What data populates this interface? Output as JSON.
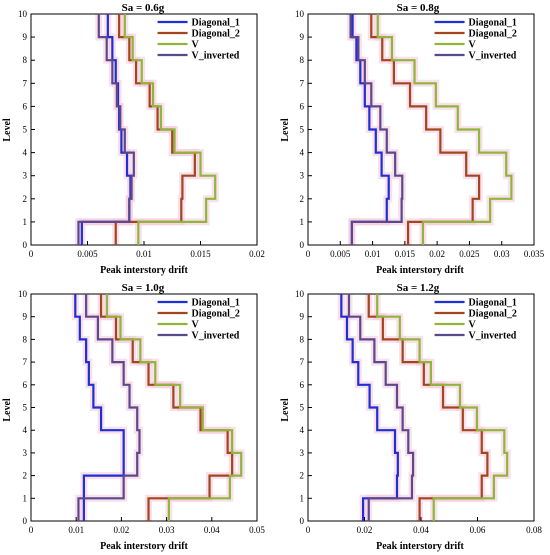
{
  "colors": {
    "Diagonal_1": "#1f2fd6",
    "Diagonal_2": "#a1461d",
    "V": "#8fb63a",
    "V_inverted": "#5a4a8c",
    "band": "#f5c6dc"
  },
  "chart_data": [
    {
      "type": "line",
      "title": "Sa = 0.6g",
      "xlabel": "Peak interstory drift",
      "ylabel": "Level",
      "xlim": [
        0,
        0.02
      ],
      "ylim": [
        0,
        10
      ],
      "xticks": [
        0,
        0.005,
        0.01,
        0.015,
        0.02
      ],
      "xtick_labels": [
        "0",
        "0.005",
        "0.01",
        "0.015",
        "0.02"
      ],
      "yticks": [
        0,
        1,
        2,
        3,
        4,
        5,
        6,
        7,
        8,
        9,
        10
      ],
      "ytick_labels": [
        "0",
        "1",
        "2",
        "3",
        "4",
        "5",
        "6",
        "7",
        "8",
        "9",
        "10"
      ],
      "legend": "top-right",
      "series": [
        {
          "name": "Diagonal_1",
          "values": [
            0.0045,
            0.0087,
            0.0088,
            0.0085,
            0.008,
            0.0078,
            0.0077,
            0.0075,
            0.0072,
            0.0068
          ]
        },
        {
          "name": "Diagonal_2",
          "values": [
            0.0075,
            0.0133,
            0.0134,
            0.0145,
            0.0125,
            0.0112,
            0.0105,
            0.0093,
            0.0087,
            0.0078
          ]
        },
        {
          "name": "V",
          "values": [
            0.0095,
            0.0155,
            0.0163,
            0.015,
            0.0127,
            0.0115,
            0.0108,
            0.0098,
            0.009,
            0.0083
          ]
        },
        {
          "name": "V_inverted",
          "values": [
            0.0042,
            0.0087,
            0.0089,
            0.0091,
            0.0083,
            0.0079,
            0.0076,
            0.0072,
            0.0067,
            0.006
          ]
        }
      ]
    },
    {
      "type": "line",
      "title": "Sa = 0.8g",
      "xlabel": "Peak interstory drift",
      "ylabel": "Level",
      "xlim": [
        0,
        0.035
      ],
      "ylim": [
        0,
        10
      ],
      "xticks": [
        0,
        0.005,
        0.01,
        0.015,
        0.02,
        0.025,
        0.03,
        0.035
      ],
      "xtick_labels": [
        "0",
        "0.005",
        "0.01",
        "0.015",
        "0.02",
        "0.025",
        "0.03",
        "0.035"
      ],
      "yticks": [
        0,
        1,
        2,
        3,
        4,
        5,
        6,
        7,
        8,
        9,
        10
      ],
      "ytick_labels": [
        "0",
        "1",
        "2",
        "3",
        "4",
        "5",
        "6",
        "7",
        "8",
        "9",
        "10"
      ],
      "legend": "top-right",
      "series": [
        {
          "name": "Diagonal_1",
          "values": [
            0.0068,
            0.0122,
            0.0125,
            0.0114,
            0.0105,
            0.0095,
            0.0088,
            0.0081,
            0.0075,
            0.0069
          ]
        },
        {
          "name": "Diagonal_2",
          "values": [
            0.0155,
            0.0255,
            0.0265,
            0.0245,
            0.0205,
            0.0183,
            0.0158,
            0.0133,
            0.0115,
            0.0098
          ]
        },
        {
          "name": "V",
          "values": [
            0.0178,
            0.0282,
            0.0315,
            0.0307,
            0.0265,
            0.0232,
            0.0198,
            0.0165,
            0.013,
            0.0108
          ]
        },
        {
          "name": "V_inverted",
          "values": [
            0.0068,
            0.0145,
            0.0146,
            0.0135,
            0.0122,
            0.0112,
            0.0098,
            0.0088,
            0.0078,
            0.0066
          ]
        }
      ]
    },
    {
      "type": "line",
      "title": "Sa = 1.0g",
      "xlabel": "Peak interstory drift",
      "ylabel": "Level",
      "xlim": [
        0,
        0.05
      ],
      "ylim": [
        0,
        10
      ],
      "xticks": [
        0,
        0.01,
        0.02,
        0.03,
        0.04,
        0.05
      ],
      "xtick_labels": [
        "0",
        "0.01",
        "0.02",
        "0.03",
        "0.04",
        "0.05"
      ],
      "yticks": [
        0,
        1,
        2,
        3,
        4,
        5,
        6,
        7,
        8,
        9,
        10
      ],
      "ytick_labels": [
        "0",
        "1",
        "2",
        "3",
        "4",
        "5",
        "6",
        "7",
        "8",
        "9",
        "10"
      ],
      "legend": "top-right",
      "series": [
        {
          "name": "Diagonal_1",
          "values": [
            0.0117,
            0.0117,
            0.0205,
            0.0205,
            0.0155,
            0.0138,
            0.0128,
            0.0122,
            0.0108,
            0.0098
          ]
        },
        {
          "name": "Diagonal_2",
          "values": [
            0.026,
            0.0395,
            0.0445,
            0.0435,
            0.0375,
            0.0315,
            0.026,
            0.0225,
            0.0188,
            0.0155
          ]
        },
        {
          "name": "V",
          "values": [
            0.0305,
            0.044,
            0.0465,
            0.0445,
            0.038,
            0.033,
            0.0275,
            0.0242,
            0.0198,
            0.0168
          ]
        },
        {
          "name": "V_inverted",
          "values": [
            0.0105,
            0.0205,
            0.0235,
            0.024,
            0.0235,
            0.0218,
            0.0205,
            0.018,
            0.0148,
            0.0122
          ]
        }
      ]
    },
    {
      "type": "line",
      "title": "Sa = 1.2g",
      "xlabel": "Peak interstory drift",
      "ylabel": "Level",
      "xlim": [
        0,
        0.08
      ],
      "ylim": [
        0,
        10
      ],
      "xticks": [
        0,
        0.02,
        0.04,
        0.06,
        0.08
      ],
      "xtick_labels": [
        "0",
        "0.02",
        "0.04",
        "0.06",
        "0.08"
      ],
      "yticks": [
        0,
        1,
        2,
        3,
        4,
        5,
        6,
        7,
        8,
        9,
        10
      ],
      "ytick_labels": [
        "0",
        "1",
        "2",
        "3",
        "4",
        "5",
        "6",
        "7",
        "8",
        "9",
        "10"
      ],
      "legend": "top-right",
      "series": [
        {
          "name": "Diagonal_1",
          "values": [
            0.0195,
            0.0315,
            0.0318,
            0.0308,
            0.0245,
            0.0218,
            0.0178,
            0.0158,
            0.0138,
            0.0118
          ]
        },
        {
          "name": "Diagonal_2",
          "values": [
            0.0395,
            0.0615,
            0.0635,
            0.0615,
            0.0548,
            0.0478,
            0.041,
            0.0335,
            0.0265,
            0.0215
          ]
        },
        {
          "name": "V",
          "values": [
            0.0445,
            0.0658,
            0.0705,
            0.0695,
            0.0598,
            0.0538,
            0.0435,
            0.0395,
            0.0325,
            0.0245
          ]
        },
        {
          "name": "V_inverted",
          "values": [
            0.0215,
            0.0368,
            0.0372,
            0.0355,
            0.0335,
            0.0315,
            0.0275,
            0.0235,
            0.0185,
            0.0145
          ]
        }
      ]
    }
  ]
}
